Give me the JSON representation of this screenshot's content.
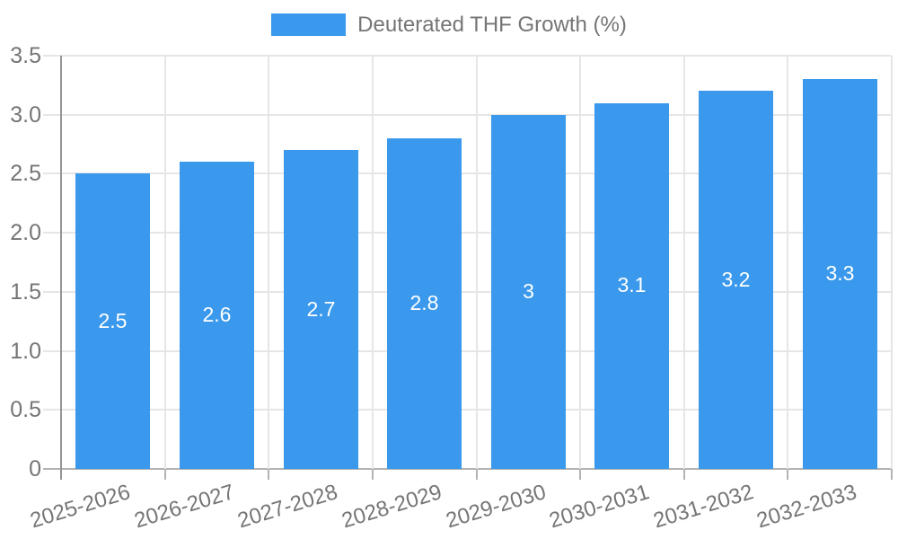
{
  "chart_data": {
    "type": "bar",
    "title": "Deuterated THF Growth (%)",
    "categories": [
      "2025-2026",
      "2026-2027",
      "2027-2028",
      "2028-2029",
      "2029-2030",
      "2030-2031",
      "2031-2032",
      "2032-2033"
    ],
    "values": [
      2.5,
      2.6,
      2.7,
      2.8,
      3,
      3.1,
      3.2,
      3.3
    ],
    "bar_labels": [
      "2.5",
      "2.6",
      "2.7",
      "2.8",
      "3",
      "3.1",
      "3.2",
      "3.3"
    ],
    "xlabel": "",
    "ylabel": "",
    "ylim": [
      0,
      3.5
    ],
    "yticks": [
      {
        "value": 0,
        "label": "0"
      },
      {
        "value": 0.5,
        "label": "0.5"
      },
      {
        "value": 1,
        "label": "1.0"
      },
      {
        "value": 1.5,
        "label": "1.5"
      },
      {
        "value": 2,
        "label": "2.0"
      },
      {
        "value": 2.5,
        "label": "2.5"
      },
      {
        "value": 3,
        "label": "3.0"
      },
      {
        "value": 3.5,
        "label": "3.5"
      }
    ],
    "grid": true,
    "legend_position": "top"
  },
  "colors": {
    "bar": "#3a99ec",
    "bar_label_text": "#ffffff",
    "grid": "#e6e6e6",
    "axis_line": "#949494",
    "baseline": "#b3b3b3",
    "tick_mark": "#b3b3b3",
    "text": "#757575",
    "background": "#ffffff"
  }
}
